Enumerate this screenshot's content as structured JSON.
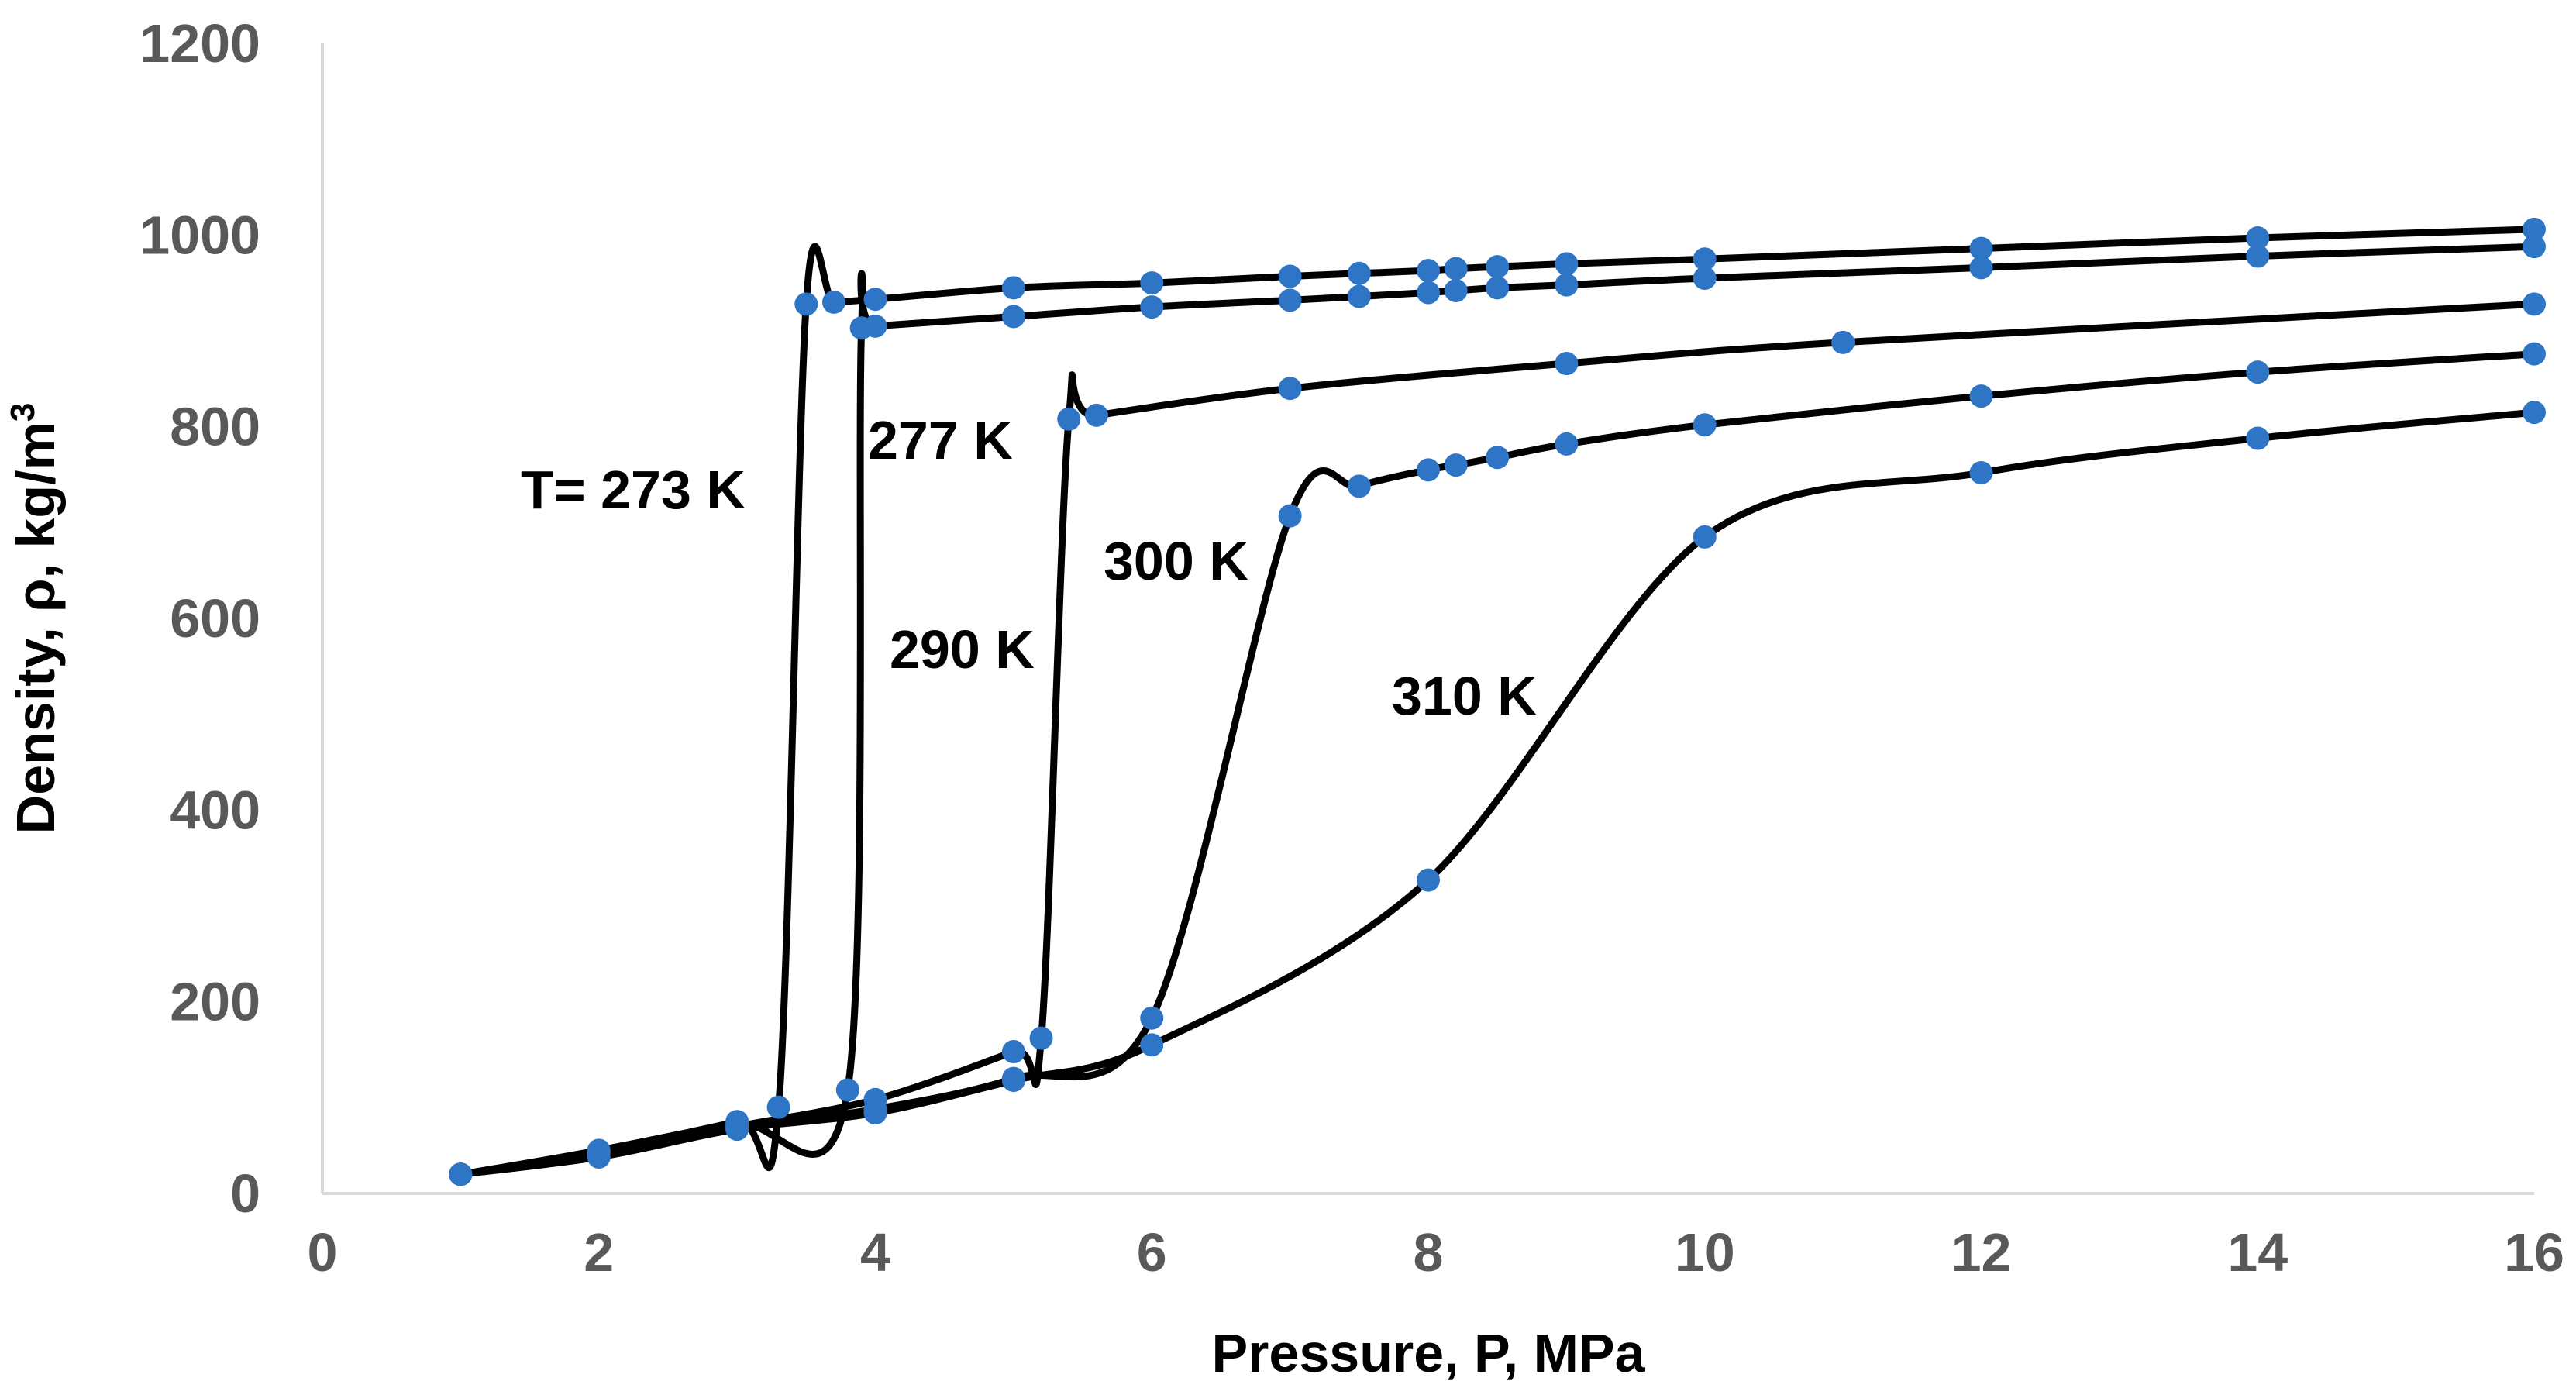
{
  "chart_data": {
    "type": "scatter",
    "title": "",
    "xlabel": "Pressure, P, MPa",
    "ylabel": "Density, ρ, kg/m",
    "ylabel_superscript": "3",
    "xlim": [
      0,
      16
    ],
    "ylim": [
      0,
      1200
    ],
    "xticks": [
      "0",
      "2",
      "4",
      "6",
      "8",
      "10",
      "12",
      "14",
      "16"
    ],
    "yticks": [
      "0",
      "200",
      "400",
      "600",
      "800",
      "1000",
      "1200"
    ],
    "grid": false,
    "marker_color": "#2E75C6",
    "line_color": "#000000",
    "series": [
      {
        "name": "T= 273 K",
        "points": [
          [
            1,
            20
          ],
          [
            2,
            45
          ],
          [
            3,
            75
          ],
          [
            3.3,
            90
          ],
          [
            3.5,
            928
          ],
          [
            3.7,
            930
          ],
          [
            4,
            933
          ],
          [
            5,
            945
          ],
          [
            6,
            950
          ],
          [
            7,
            957
          ],
          [
            7.5,
            960
          ],
          [
            8,
            963
          ],
          [
            8.2,
            965
          ],
          [
            8.5,
            967
          ],
          [
            9,
            970
          ],
          [
            10,
            975
          ],
          [
            12,
            986
          ],
          [
            14,
            997
          ],
          [
            16,
            1006
          ]
        ]
      },
      {
        "name": "277 K",
        "points": [
          [
            1,
            20
          ],
          [
            2,
            43
          ],
          [
            3,
            72
          ],
          [
            3.8,
            108
          ],
          [
            3.9,
            903
          ],
          [
            4,
            905
          ],
          [
            5,
            915
          ],
          [
            6,
            925
          ],
          [
            7,
            932
          ],
          [
            7.5,
            936
          ],
          [
            8,
            940
          ],
          [
            8.2,
            942
          ],
          [
            8.5,
            945
          ],
          [
            9,
            948
          ],
          [
            10,
            955
          ],
          [
            12,
            966
          ],
          [
            14,
            978
          ],
          [
            16,
            988
          ]
        ]
      },
      {
        "name": "290 K",
        "points": [
          [
            1,
            20
          ],
          [
            2,
            42
          ],
          [
            3,
            70
          ],
          [
            4,
            98
          ],
          [
            5,
            148
          ],
          [
            5.2,
            162
          ],
          [
            5.4,
            808
          ],
          [
            5.6,
            812
          ],
          [
            7,
            840
          ],
          [
            9,
            866
          ],
          [
            11,
            888
          ],
          [
            16,
            928
          ]
        ]
      },
      {
        "name": "300 K",
        "points": [
          [
            1,
            20
          ],
          [
            2,
            40
          ],
          [
            3,
            68
          ],
          [
            4,
            88
          ],
          [
            5,
            120
          ],
          [
            6,
            183
          ],
          [
            7,
            707
          ],
          [
            7.5,
            738
          ],
          [
            8,
            755
          ],
          [
            8.2,
            760
          ],
          [
            8.5,
            768
          ],
          [
            9,
            782
          ],
          [
            10,
            802
          ],
          [
            12,
            832
          ],
          [
            14,
            857
          ],
          [
            16,
            876
          ]
        ]
      },
      {
        "name": "310 K",
        "points": [
          [
            1,
            20
          ],
          [
            2,
            38
          ],
          [
            3,
            67
          ],
          [
            4,
            84
          ],
          [
            5,
            118
          ],
          [
            6,
            155
          ],
          [
            8,
            327
          ],
          [
            10,
            685
          ],
          [
            12,
            752
          ],
          [
            14,
            788
          ],
          [
            16,
            815
          ]
        ]
      }
    ],
    "annotations": [
      {
        "text": "T= 273 K",
        "series": "T= 273 K"
      },
      {
        "text": "277 K",
        "series": "277 K"
      },
      {
        "text": "290 K",
        "series": "290 K"
      },
      {
        "text": "300 K",
        "series": "300 K"
      },
      {
        "text": "310 K",
        "series": "310 K"
      }
    ]
  }
}
